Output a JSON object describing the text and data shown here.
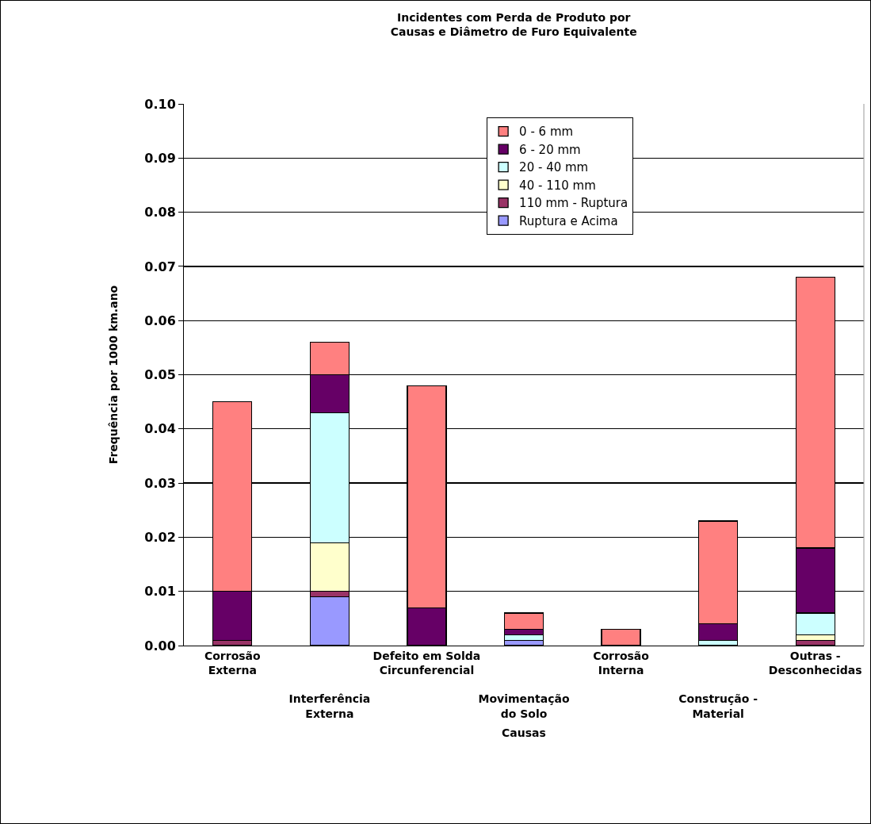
{
  "chart_data": {
    "type": "bar",
    "stacked": true,
    "title": "Incidentes com Perda de Produto por\nCausas e Diâmetro de Furo Equivalente",
    "xlabel": "Causas",
    "ylabel": "Frequência por 1000 km.ano",
    "categories": [
      "Corrosão\nExterna",
      "Interferência\nExterna",
      "Defeito em Solda\nCircunferencial",
      "Movimentação\ndo Solo",
      "Corrosão\nInterna",
      "Construção -\nMaterial",
      "Outras -\nDesconhecidas"
    ],
    "series": [
      {
        "name": "Ruptura e Acima",
        "color": "#9999ff",
        "values": [
          0,
          0.009,
          0,
          0.001,
          0,
          0,
          0
        ]
      },
      {
        "name": "110 mm - Ruptura",
        "color": "#993366",
        "values": [
          0.001,
          0.001,
          0,
          0,
          0,
          0,
          0.001
        ]
      },
      {
        "name": "40 - 110 mm",
        "color": "#ffffcc",
        "values": [
          0,
          0.009,
          0,
          0,
          0,
          0,
          0.001
        ]
      },
      {
        "name": "20 - 40 mm",
        "color": "#ccffff",
        "values": [
          0,
          0.024,
          0,
          0.001,
          0,
          0.001,
          0.004
        ]
      },
      {
        "name": "6 - 20 mm",
        "color": "#660066",
        "values": [
          0.009,
          0.007,
          0.007,
          0.001,
          0,
          0.003,
          0.012
        ]
      },
      {
        "name": "0 - 6 mm",
        "color": "#ff8080",
        "values": [
          0.035,
          0.006,
          0.041,
          0.003,
          0.003,
          0.019,
          0.05
        ]
      }
    ],
    "ylim": [
      0,
      0.1
    ],
    "yticks": [
      {
        "value": 0,
        "label": "0.00"
      },
      {
        "value": 0.01,
        "label": "0.01"
      },
      {
        "value": 0.02,
        "label": "0.02"
      },
      {
        "value": 0.03,
        "label": "0.03"
      },
      {
        "value": 0.04,
        "label": "0.04"
      },
      {
        "value": 0.05,
        "label": "0.05"
      },
      {
        "value": 0.06,
        "label": "0.06"
      },
      {
        "value": 0.07,
        "label": "0.07"
      },
      {
        "value": 0.08,
        "label": "0.08"
      },
      {
        "value": 0.09,
        "label": "0.09"
      },
      {
        "value": 0.1,
        "label": "0.10"
      }
    ],
    "grid": "y",
    "legend": "top"
  }
}
